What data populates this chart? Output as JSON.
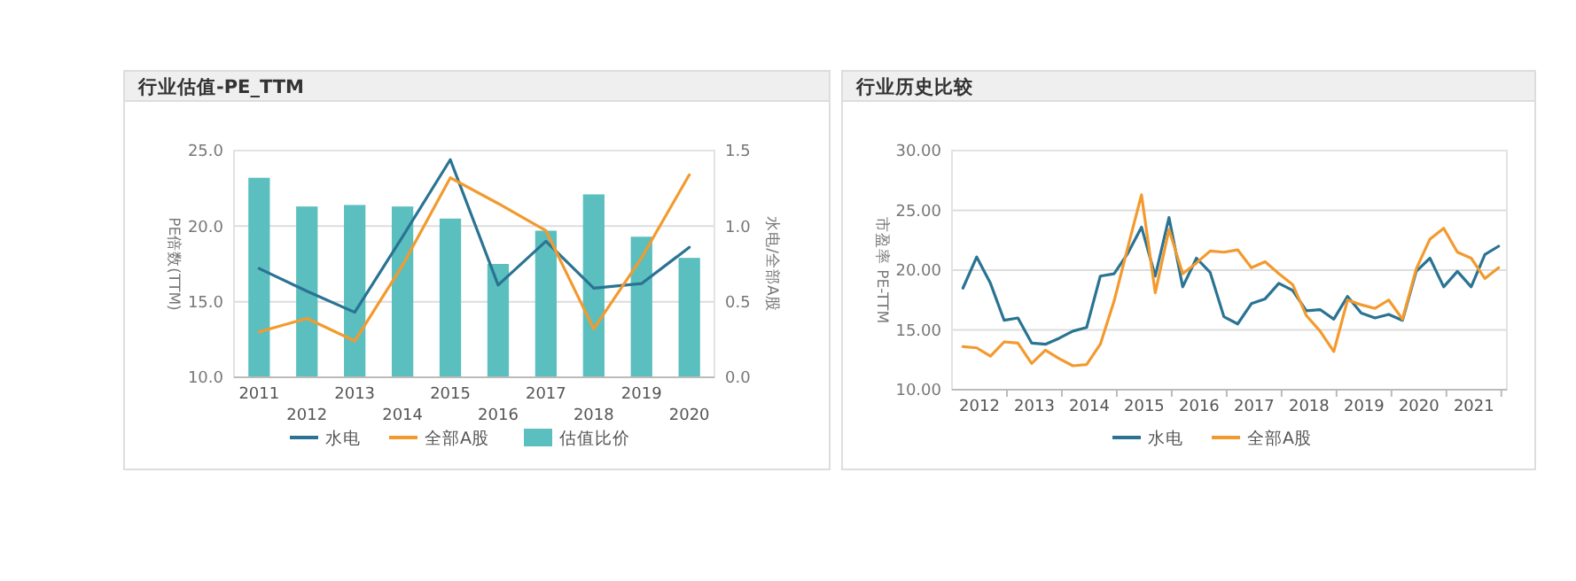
{
  "chart_data": [
    {
      "type": "line",
      "title": "行业估值-PE_TTM",
      "ylabel": "PE倍数(TTM)",
      "y2label": "水电/全部A股",
      "categories": [
        "2011",
        "2012",
        "2013",
        "2014",
        "2015",
        "2016",
        "2017",
        "2018",
        "2019",
        "2020"
      ],
      "series": [
        {
          "name": "估值比价",
          "type": "bar",
          "axis": "y2",
          "color": "#5bbfbf",
          "values": [
            1.32,
            1.13,
            1.14,
            1.13,
            1.05,
            0.75,
            0.97,
            1.21,
            0.93,
            0.79
          ]
        },
        {
          "name": "水电",
          "color": "#2a7393",
          "values": [
            17.2,
            15.7,
            14.3,
            19.3,
            24.4,
            16.1,
            19.0,
            15.9,
            16.2,
            18.6
          ]
        },
        {
          "name": "全部A股",
          "color": "#f39a2e",
          "values": [
            13.0,
            13.9,
            12.4,
            17.4,
            23.2,
            21.5,
            19.7,
            13.2,
            17.9,
            23.4
          ]
        }
      ],
      "ylim": [
        10,
        25
      ],
      "yticks": [
        {
          "value": 10,
          "label": "10.0"
        },
        {
          "value": 15,
          "label": "15.0"
        },
        {
          "value": 20,
          "label": "20.0"
        },
        {
          "value": 25,
          "label": "25.0"
        }
      ],
      "y2lim": [
        0,
        1.5
      ],
      "y2ticks": [
        {
          "value": 0,
          "label": "0.0"
        },
        {
          "value": 0.5,
          "label": "0.5"
        },
        {
          "value": 1,
          "label": "1.0"
        },
        {
          "value": 1.5,
          "label": "1.5"
        }
      ],
      "grid": "y",
      "legend": "bottom"
    },
    {
      "type": "line",
      "title": "行业历史比较",
      "ylabel": "市盈率 PE-TTM",
      "x": [
        2012.2,
        2012.45,
        2012.7,
        2012.95,
        2013.2,
        2013.45,
        2013.7,
        2013.95,
        2014.2,
        2014.45,
        2014.7,
        2014.95,
        2015.2,
        2015.45,
        2015.7,
        2015.95,
        2016.2,
        2016.45,
        2016.7,
        2016.95,
        2017.2,
        2017.45,
        2017.7,
        2017.95,
        2018.2,
        2018.45,
        2018.7,
        2018.95,
        2019.2,
        2019.45,
        2019.7,
        2019.95,
        2020.2,
        2020.45,
        2020.7,
        2020.95,
        2021.2,
        2021.45,
        2021.7,
        2021.95
      ],
      "series": [
        {
          "name": "水电",
          "color": "#2a7393",
          "values": [
            18.5,
            21.1,
            18.9,
            15.8,
            16.0,
            13.9,
            13.8,
            14.3,
            14.9,
            15.2,
            19.5,
            19.7,
            21.4,
            23.6,
            19.5,
            24.4,
            18.6,
            21.0,
            19.8,
            16.1,
            15.5,
            17.2,
            17.6,
            18.9,
            18.3,
            16.6,
            16.7,
            15.9,
            17.8,
            16.4,
            16.0,
            16.3,
            15.8,
            19.9,
            21.0,
            18.6,
            19.9,
            18.6,
            21.3,
            22.0
          ]
        },
        {
          "name": "全部A股",
          "color": "#f39a2e",
          "values": [
            13.6,
            13.5,
            12.8,
            14.0,
            13.9,
            12.2,
            13.3,
            12.6,
            12.0,
            12.1,
            13.8,
            17.4,
            21.9,
            26.3,
            18.1,
            23.4,
            19.7,
            20.6,
            21.6,
            21.5,
            21.7,
            20.2,
            20.7,
            19.7,
            18.8,
            16.2,
            14.9,
            13.2,
            17.5,
            17.1,
            16.8,
            17.5,
            15.9,
            20.1,
            22.6,
            23.5,
            21.5,
            21.0,
            19.3,
            20.2
          ]
        }
      ],
      "xlim": [
        2012,
        2022.1
      ],
      "xticks": [
        {
          "value": 2012.5,
          "label": "2012"
        },
        {
          "value": 2013,
          "label": null
        },
        {
          "value": 2013.5,
          "label": "2013"
        },
        {
          "value": 2014,
          "label": null
        },
        {
          "value": 2014.5,
          "label": "2014"
        },
        {
          "value": 2015,
          "label": null
        },
        {
          "value": 2015.5,
          "label": "2015"
        },
        {
          "value": 2016,
          "label": null
        },
        {
          "value": 2016.5,
          "label": "2016"
        },
        {
          "value": 2017,
          "label": null
        },
        {
          "value": 2017.5,
          "label": "2017"
        },
        {
          "value": 2018,
          "label": null
        },
        {
          "value": 2018.5,
          "label": "2018"
        },
        {
          "value": 2019,
          "label": null
        },
        {
          "value": 2019.5,
          "label": "2019"
        },
        {
          "value": 2020,
          "label": null
        },
        {
          "value": 2020.5,
          "label": "2020"
        },
        {
          "value": 2021,
          "label": null
        },
        {
          "value": 2021.5,
          "label": "2021"
        },
        {
          "value": 2022,
          "label": null
        }
      ],
      "ylim": [
        10,
        30
      ],
      "yticks": [
        {
          "value": 10,
          "label": "10.00"
        },
        {
          "value": 15,
          "label": "15.00"
        },
        {
          "value": 20,
          "label": "20.00"
        },
        {
          "value": 25,
          "label": "25.00"
        },
        {
          "value": 30,
          "label": "30.00"
        }
      ],
      "grid": "y",
      "legend": "bottom"
    }
  ]
}
